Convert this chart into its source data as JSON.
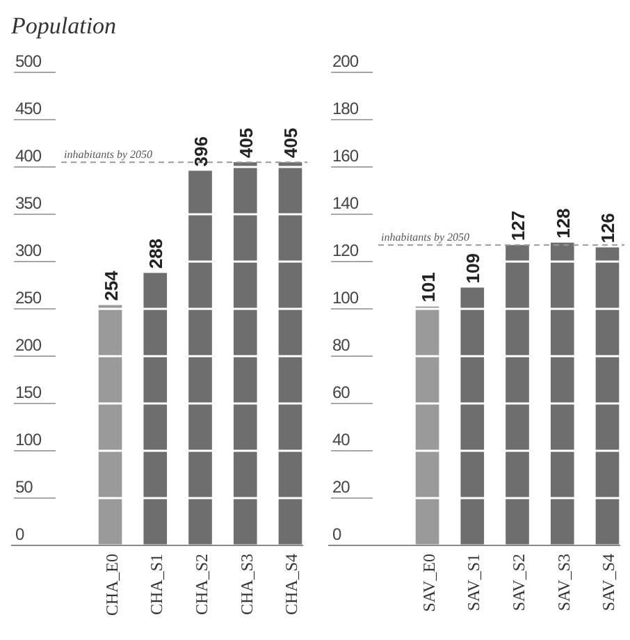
{
  "chart_data": [
    {
      "type": "bar",
      "title": "Population",
      "categories": [
        "CHA_E0",
        "CHA_S1",
        "CHA_S2",
        "CHA_S3",
        "CHA_S4"
      ],
      "values": [
        254,
        288,
        396,
        405,
        405
      ],
      "colors": [
        "#9a9a9a",
        "#6e6e6e",
        "#6e6e6e",
        "#6e6e6e",
        "#6e6e6e"
      ],
      "ylim": [
        0,
        500
      ],
      "yticks": [
        0,
        50,
        100,
        150,
        200,
        250,
        300,
        350,
        400,
        450,
        500
      ],
      "grid": "y",
      "data_labels": true,
      "ref_lines": [
        {
          "axis": "y",
          "value": 405,
          "label": "inhabitants by 2050",
          "color": "#999999",
          "line_style": "dashed"
        }
      ]
    },
    {
      "type": "bar",
      "categories": [
        "SAV_E0",
        "SAV_S1",
        "SAV_S2",
        "SAV_S3",
        "SAV_S4"
      ],
      "values": [
        101,
        109,
        127,
        128,
        126
      ],
      "colors": [
        "#9a9a9a",
        "#6e6e6e",
        "#6e6e6e",
        "#6e6e6e",
        "#6e6e6e"
      ],
      "ylim": [
        0,
        200
      ],
      "yticks": [
        0,
        20,
        40,
        60,
        80,
        100,
        120,
        140,
        160,
        180,
        200
      ],
      "grid": "y",
      "data_labels": true,
      "ref_lines": [
        {
          "axis": "y",
          "value": 127,
          "label": "inhabitants by 2050",
          "color": "#999999",
          "line_style": "dashed"
        }
      ]
    }
  ]
}
